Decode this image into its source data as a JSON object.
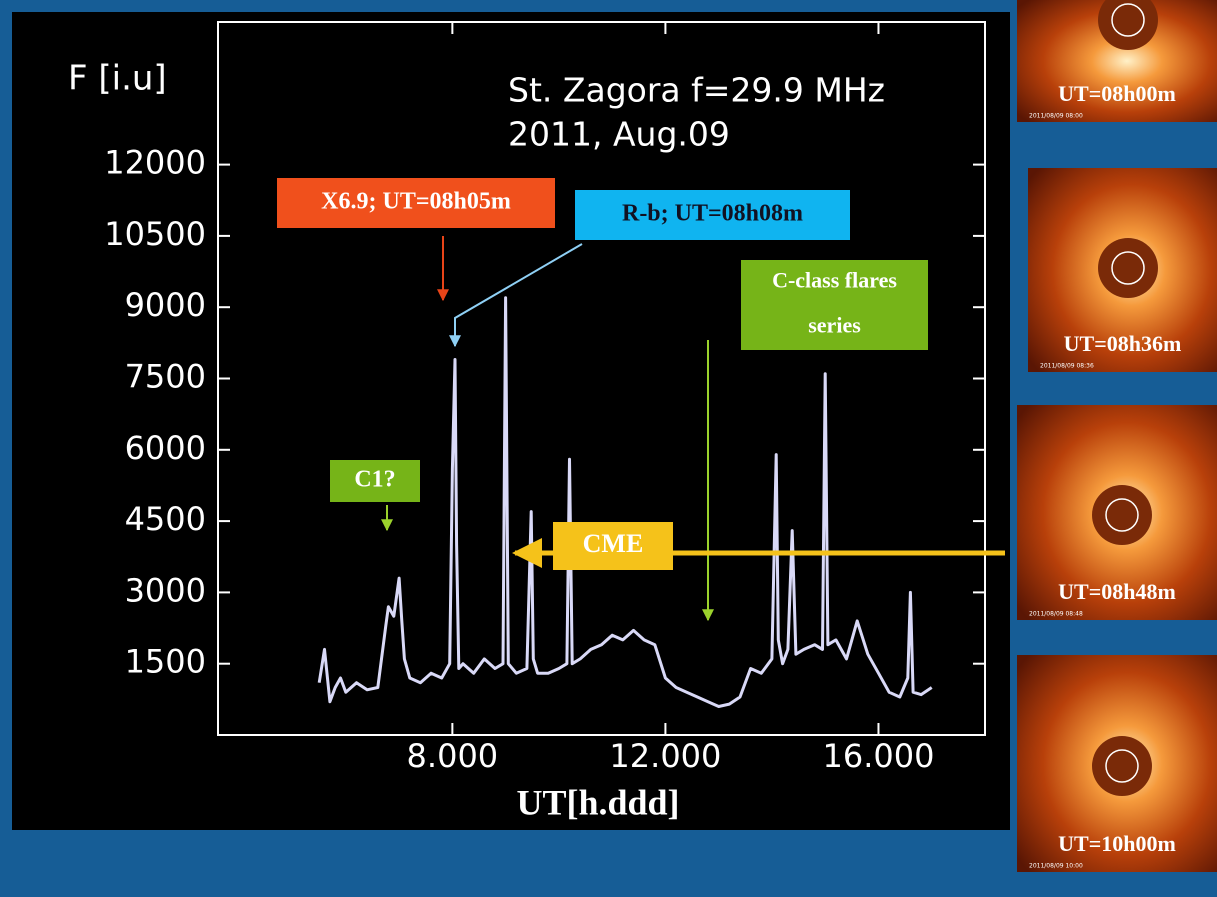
{
  "chart_data": {
    "type": "line",
    "title": "St. Zagora f=29.9 MHz",
    "subtitle": "2011, Aug.09",
    "ylabel": "F [i.u]",
    "xlabel": "UT[h.ddd]",
    "xlim": [
      3.6,
      18
    ],
    "ylim": [
      0,
      15000
    ],
    "xticks": [
      {
        "value": 8,
        "label": "8.000"
      },
      {
        "value": 12,
        "label": "12.000"
      },
      {
        "value": 16,
        "label": "16.000"
      }
    ],
    "yticks": [
      1500,
      3000,
      4500,
      6000,
      7500,
      9000,
      10500,
      12000
    ],
    "series": [
      {
        "color": "#d9d9f7",
        "x": [
          5.5,
          5.6,
          5.7,
          5.8,
          5.9,
          6.0,
          6.2,
          6.4,
          6.6,
          6.75,
          6.8,
          6.9,
          7.0,
          7.05,
          7.1,
          7.2,
          7.4,
          7.6,
          7.8,
          7.95,
          8.0,
          8.05,
          8.08,
          8.12,
          8.2,
          8.4,
          8.6,
          8.8,
          8.95,
          9.0,
          9.05,
          9.2,
          9.4,
          9.48,
          9.52,
          9.6,
          9.8,
          10.0,
          10.15,
          10.2,
          10.25,
          10.4,
          10.6,
          10.8,
          11.0,
          11.2,
          11.4,
          11.6,
          11.8,
          12.0,
          12.2,
          12.4,
          12.6,
          12.8,
          13.0,
          13.2,
          13.4,
          13.6,
          13.8,
          14.0,
          14.08,
          14.12,
          14.2,
          14.3,
          14.38,
          14.45,
          14.6,
          14.8,
          14.95,
          15.0,
          15.05,
          15.2,
          15.4,
          15.6,
          15.8,
          16.0,
          16.2,
          16.4,
          16.55,
          16.6,
          16.65,
          16.8,
          17.0
        ],
        "values": [
          1100,
          1800,
          700,
          1000,
          1200,
          900,
          1100,
          950,
          1000,
          2300,
          2700,
          2500,
          3300,
          2400,
          1600,
          1200,
          1100,
          1300,
          1200,
          1500,
          5600,
          7900,
          4000,
          1400,
          1500,
          1300,
          1600,
          1400,
          1500,
          9200,
          1500,
          1300,
          1400,
          4700,
          1600,
          1300,
          1300,
          1400,
          1500,
          5800,
          1500,
          1600,
          1800,
          1900,
          2100,
          2000,
          2200,
          2000,
          1900,
          1200,
          1000,
          900,
          800,
          700,
          600,
          650,
          800,
          1400,
          1300,
          1600,
          5900,
          2000,
          1500,
          1800,
          4300,
          1700,
          1800,
          1900,
          1800,
          7600,
          1900,
          2000,
          1600,
          2400,
          1700,
          1300,
          900,
          800,
          1200,
          3000,
          900,
          850,
          1000
        ]
      }
    ],
    "annotations": [
      {
        "lines": [
          "X6.9; UT=08h05m"
        ],
        "color": "#f0501c"
      },
      {
        "lines": [
          "R-b; UT=08h08m"
        ],
        "color": "#10b4f0"
      },
      {
        "lines": [
          "C-class flares",
          "series"
        ],
        "color": "#76b418"
      },
      {
        "lines": [
          "C1?"
        ],
        "color": "#76b418"
      },
      {
        "lines": [
          "CME"
        ],
        "color": "#f5c21a"
      }
    ]
  },
  "images": [
    {
      "label": "UT=08h00m",
      "timestamp": "2011/08/09 08:00"
    },
    {
      "label": "UT=08h36m",
      "timestamp": "2011/08/09 08:36"
    },
    {
      "label": "UT=08h48m",
      "timestamp": "2011/08/09 08:48"
    },
    {
      "label": "UT=10h00m",
      "timestamp": "2011/08/09 10:00"
    }
  ]
}
